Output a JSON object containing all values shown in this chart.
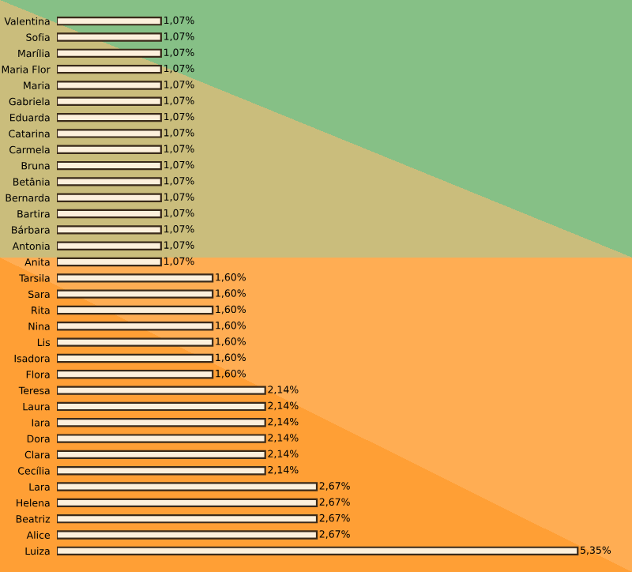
{
  "chart_data": {
    "type": "bar",
    "orientation": "horizontal",
    "categories": [
      "Valentina",
      "Sofia",
      "Marília",
      "Maria Flor",
      "Maria",
      "Gabriela",
      "Eduarda",
      "Catarina",
      "Carmela",
      "Bruna",
      "Betânia",
      "Bernarda",
      "Bartira",
      "Bárbara",
      "Antonia",
      "Anita",
      "Tarsila",
      "Sara",
      "Rita",
      "Nina",
      "Lis",
      "Isadora",
      "Flora",
      "Teresa",
      "Laura",
      "Iara",
      "Dora",
      "Clara",
      "Cecília",
      "Lara",
      "Helena",
      "Beatriz",
      "Alice",
      "Luiza"
    ],
    "values": [
      1.07,
      1.07,
      1.07,
      1.07,
      1.07,
      1.07,
      1.07,
      1.07,
      1.07,
      1.07,
      1.07,
      1.07,
      1.07,
      1.07,
      1.07,
      1.07,
      1.6,
      1.6,
      1.6,
      1.6,
      1.6,
      1.6,
      1.6,
      2.14,
      2.14,
      2.14,
      2.14,
      2.14,
      2.14,
      2.67,
      2.67,
      2.67,
      2.67,
      5.35
    ],
    "value_labels": [
      "1,07%",
      "1,07%",
      "1,07%",
      "1,07%",
      "1,07%",
      "1,07%",
      "1,07%",
      "1,07%",
      "1,07%",
      "1,07%",
      "1,07%",
      "1,07%",
      "1,07%",
      "1,07%",
      "1,07%",
      "1,07%",
      "1,60%",
      "1,60%",
      "1,60%",
      "1,60%",
      "1,60%",
      "1,60%",
      "1,60%",
      "2,14%",
      "2,14%",
      "2,14%",
      "2,14%",
      "2,14%",
      "2,14%",
      "2,67%",
      "2,67%",
      "2,67%",
      "2,67%",
      "5,35%"
    ],
    "color": "#fdf0dc",
    "grid": false
  }
}
